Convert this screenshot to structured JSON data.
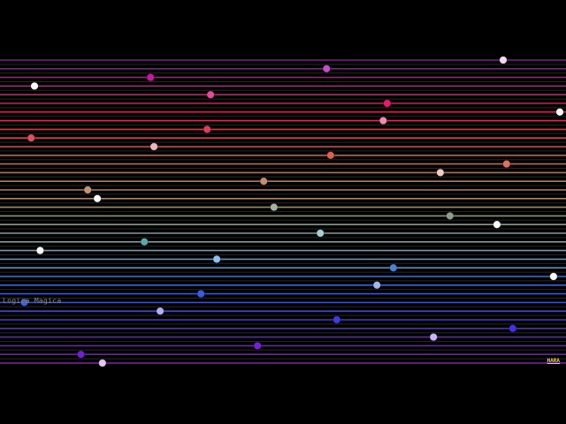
{
  "title_label": "Logica Magica",
  "badge_label": "HARA",
  "colors": {
    "background": "#000000",
    "label": "#8a8a8a",
    "badge": "#e8d84a"
  },
  "strings": [
    {
      "color": "#7a1f8c",
      "dot": "#f2d9ee",
      "pos": 0.889
    },
    {
      "color": "#262626",
      "dot": null,
      "pos": null
    },
    {
      "color": "#7a1f8c",
      "dot": "#c050c8",
      "pos": 0.577
    },
    {
      "color": "#262626",
      "dot": null,
      "pos": null
    },
    {
      "color": "#a01d7a",
      "dot": "#c8189a",
      "pos": 0.266
    },
    {
      "color": "#262626",
      "dot": null,
      "pos": null
    },
    {
      "color": "#b2247a",
      "dot": "#ffffff",
      "pos": 0.061
    },
    {
      "color": "#262626",
      "dot": null,
      "pos": null
    },
    {
      "color": "#c02466",
      "dot": "#e64a9c",
      "pos": 0.372
    },
    {
      "color": "#262626",
      "dot": null,
      "pos": null
    },
    {
      "color": "#c81e5a",
      "dot": "#e8196a",
      "pos": 0.684
    },
    {
      "color": "#262626",
      "dot": null,
      "pos": null
    },
    {
      "color": "#d01e50",
      "dot": "#ffffff",
      "pos": 0.989
    },
    {
      "color": "#262626",
      "dot": null,
      "pos": null
    },
    {
      "color": "#d23250",
      "dot": "#f08cb0",
      "pos": 0.677
    },
    {
      "color": "#262626",
      "dot": null,
      "pos": null
    },
    {
      "color": "#d03c4a",
      "dot": "#e23c5a",
      "pos": 0.366
    },
    {
      "color": "#262626",
      "dot": null,
      "pos": null
    },
    {
      "color": "#d0464a",
      "dot": "#e05060",
      "pos": 0.055
    },
    {
      "color": "#262626",
      "dot": null,
      "pos": null
    },
    {
      "color": "#d2504c",
      "dot": "#f2b4c0",
      "pos": 0.272
    },
    {
      "color": "#262626",
      "dot": null,
      "pos": null
    },
    {
      "color": "#d2584c",
      "dot": "#e06050",
      "pos": 0.584
    },
    {
      "color": "#262626",
      "dot": null,
      "pos": null
    },
    {
      "color": "#c8644e",
      "dot": "#e07060",
      "pos": 0.895
    },
    {
      "color": "#262626",
      "dot": null,
      "pos": null
    },
    {
      "color": "#c06a50",
      "dot": "#f5ccc4",
      "pos": 0.778
    },
    {
      "color": "#262626",
      "dot": null,
      "pos": null
    },
    {
      "color": "#b8765a",
      "dot": "#c09070",
      "pos": 0.466
    },
    {
      "color": "#262626",
      "dot": null,
      "pos": null
    },
    {
      "color": "#b07e60",
      "dot": "#c49478",
      "pos": 0.155
    },
    {
      "color": "#262626",
      "dot": null,
      "pos": null
    },
    {
      "color": "#a88464",
      "dot": "#ffffff",
      "pos": 0.172
    },
    {
      "color": "#262626",
      "dot": null,
      "pos": null
    },
    {
      "color": "#9a8e70",
      "dot": "#a8b0a0",
      "pos": 0.484
    },
    {
      "color": "#262626",
      "dot": null,
      "pos": null
    },
    {
      "color": "#8c9478",
      "dot": "#8aa088",
      "pos": 0.795
    },
    {
      "color": "#262626",
      "dot": null,
      "pos": null
    },
    {
      "color": "#889a86",
      "dot": "#ffffff",
      "pos": 0.878
    },
    {
      "color": "#262626",
      "dot": null,
      "pos": null
    },
    {
      "color": "#7c9c98",
      "dot": "#a8d0d4",
      "pos": 0.566
    },
    {
      "color": "#262626",
      "dot": null,
      "pos": null
    },
    {
      "color": "#70a0a4",
      "dot": "#58a8b0",
      "pos": 0.255
    },
    {
      "color": "#262626",
      "dot": null,
      "pos": null
    },
    {
      "color": "#6aa0b8",
      "dot": "#ffffff",
      "pos": 0.071
    },
    {
      "color": "#262626",
      "dot": null,
      "pos": null
    },
    {
      "color": "#5a98c8",
      "dot": "#90c0f0",
      "pos": 0.383
    },
    {
      "color": "#262626",
      "dot": null,
      "pos": null
    },
    {
      "color": "#5090d0",
      "dot": "#4a80d8",
      "pos": 0.695
    },
    {
      "color": "#262626",
      "dot": null,
      "pos": null
    },
    {
      "color": "#3c70d8",
      "dot": "#ffffff",
      "pos": 0.978
    },
    {
      "color": "#262626",
      "dot": null,
      "pos": null
    },
    {
      "color": "#3c64d0",
      "dot": "#a0b8f0",
      "pos": 0.666
    },
    {
      "color": "#262626",
      "dot": null,
      "pos": null
    },
    {
      "color": "#3a58c8",
      "dot": "#3c5ce0",
      "pos": 0.355
    },
    {
      "color": "#262626",
      "dot": null,
      "pos": null
    },
    {
      "color": "#3c4ec0",
      "dot": "#3c60d8",
      "pos": 0.043
    },
    {
      "color": "#262626",
      "dot": null,
      "pos": null
    },
    {
      "color": "#4048c0",
      "dot": "#b0b0f8",
      "pos": 0.283
    },
    {
      "color": "#262626",
      "dot": null,
      "pos": null
    },
    {
      "color": "#4838c0",
      "dot": "#3c3ce0",
      "pos": 0.595
    },
    {
      "color": "#262626",
      "dot": null,
      "pos": null
    },
    {
      "color": "#5030c0",
      "dot": "#4030e8",
      "pos": 0.906
    },
    {
      "color": "#262626",
      "dot": null,
      "pos": null
    },
    {
      "color": "#5a28bc",
      "dot": "#c8b4f8",
      "pos": 0.766
    },
    {
      "color": "#262626",
      "dot": null,
      "pos": null
    },
    {
      "color": "#6424b8",
      "dot": "#7820d8",
      "pos": 0.455
    },
    {
      "color": "#262626",
      "dot": null,
      "pos": null
    },
    {
      "color": "#6e20b0",
      "dot": "#7020d0",
      "pos": 0.143
    },
    {
      "color": "#262626",
      "dot": null,
      "pos": null
    },
    {
      "color": "#8022a8",
      "dot": "#e8c4f0",
      "pos": 0.181
    }
  ]
}
